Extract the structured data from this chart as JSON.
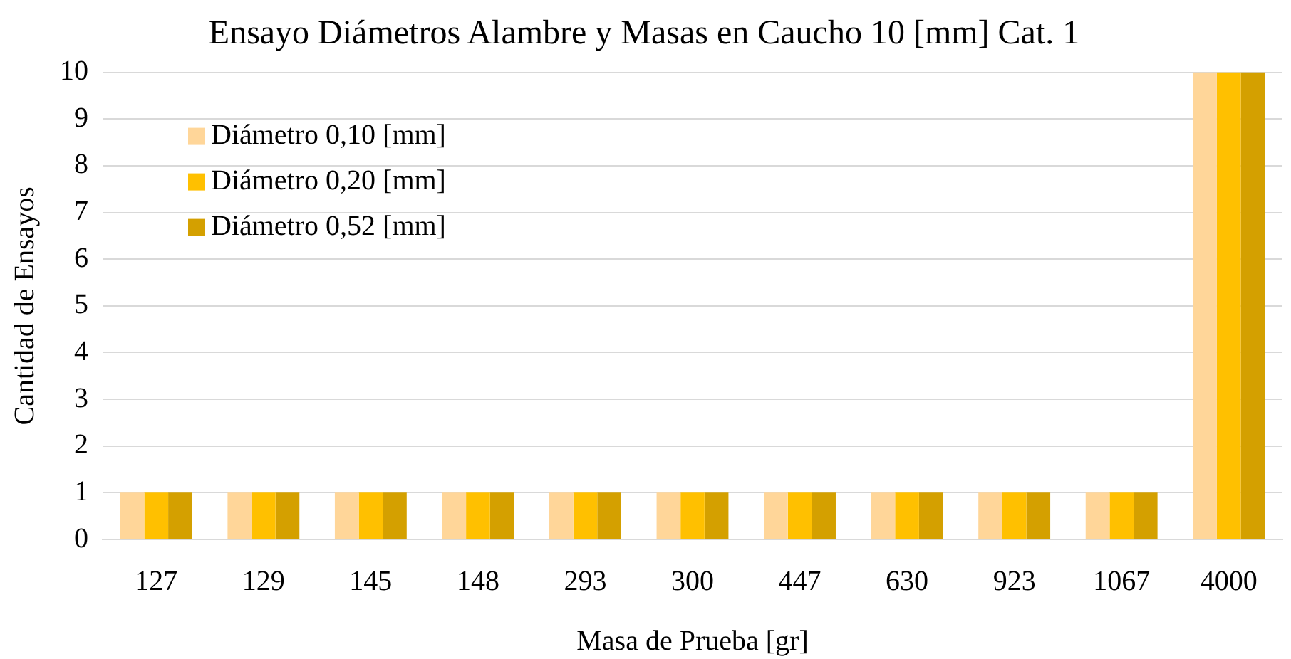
{
  "chart_data": {
    "type": "bar",
    "title": "Ensayo Diámetros Alambre y Masas en Caucho 10 [mm] Cat. 1",
    "xlabel": "Masa de Prueba [gr]",
    "ylabel": "Cantidad de Ensayos",
    "categories": [
      "127",
      "129",
      "145",
      "148",
      "293",
      "300",
      "447",
      "630",
      "923",
      "1067",
      "4000"
    ],
    "series": [
      {
        "name": "Diámetro 0,10 [mm]",
        "color": "#ffd699",
        "values": [
          1,
          1,
          1,
          1,
          1,
          1,
          1,
          1,
          1,
          1,
          10
        ]
      },
      {
        "name": "Diámetro 0,20 [mm]",
        "color": "#ffc000",
        "values": [
          1,
          1,
          1,
          1,
          1,
          1,
          1,
          1,
          1,
          1,
          10
        ]
      },
      {
        "name": "Diámetro 0,52 [mm]",
        "color": "#d4a000",
        "values": [
          1,
          1,
          1,
          1,
          1,
          1,
          1,
          1,
          1,
          1,
          10
        ]
      }
    ],
    "ylim": [
      0,
      10
    ],
    "yticks": [
      0,
      1,
      2,
      3,
      4,
      5,
      6,
      7,
      8,
      9,
      10
    ],
    "grid": "y",
    "legend": "top left"
  }
}
